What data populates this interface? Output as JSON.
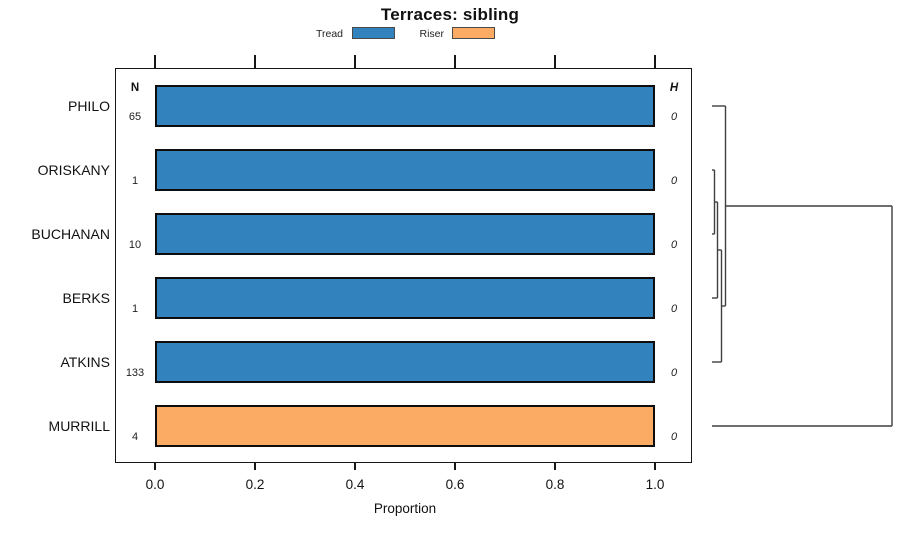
{
  "title": "Terraces: sibling",
  "legend": {
    "items": [
      {
        "label": "Tread",
        "color": "#3182BD"
      },
      {
        "label": "Riser",
        "color": "#FBAB63"
      }
    ]
  },
  "columns": {
    "n_header": "N",
    "h_header": "H"
  },
  "x_axis": {
    "label": "Proportion",
    "tick_labels": [
      "0.0",
      "0.2",
      "0.4",
      "0.6",
      "0.8",
      "1.0"
    ]
  },
  "chart_data": {
    "type": "bar",
    "orientation": "horizontal",
    "title": "Terraces: sibling",
    "xlabel": "Proportion",
    "xlim": [
      0,
      1.08
    ],
    "x_ticks": [
      0,
      0.2,
      0.4,
      0.6,
      0.8,
      1.0
    ],
    "grid": false,
    "legend_entries": [
      "Tread",
      "Riser"
    ],
    "categories": [
      "PHILO",
      "ORISKANY",
      "BUCHANAN",
      "BERKS",
      "ATKINS",
      "MURRILL"
    ],
    "rows": [
      {
        "label": "PHILO",
        "segment": "Tread",
        "proportion": 1.0,
        "n": 65,
        "h": 0
      },
      {
        "label": "ORISKANY",
        "segment": "Tread",
        "proportion": 1.0,
        "n": 1,
        "h": 0
      },
      {
        "label": "BUCHANAN",
        "segment": "Tread",
        "proportion": 1.0,
        "n": 10,
        "h": 0
      },
      {
        "label": "BERKS",
        "segment": "Tread",
        "proportion": 1.0,
        "n": 1,
        "h": 0
      },
      {
        "label": "ATKINS",
        "segment": "Tread",
        "proportion": 1.0,
        "n": 133,
        "h": 0
      },
      {
        "label": "MURRILL",
        "segment": "Riser",
        "proportion": 1.0,
        "n": 4,
        "h": 0
      }
    ],
    "dendrogram": {
      "orientation": "right",
      "merges": [
        {
          "left": "ORISKANY",
          "right": "BUCHANAN",
          "height": 0
        },
        {
          "left": "node0",
          "right": "BERKS",
          "height": 0
        },
        {
          "left": "node1",
          "right": "ATKINS",
          "height": 0
        },
        {
          "left": "PHILO",
          "right": "node2",
          "height": 0
        },
        {
          "left": "node3",
          "right": "MURRILL",
          "height": 1
        }
      ]
    }
  }
}
